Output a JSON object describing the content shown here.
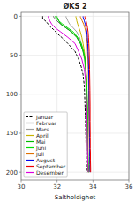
{
  "chart_data": {
    "type": "line",
    "title": "ØKS 2",
    "xlabel": "Saltholdighet",
    "xlim": [
      30,
      36
    ],
    "ylim": [
      210,
      -5
    ],
    "xticks": [
      30,
      32,
      34,
      36
    ],
    "yticks": [
      0,
      50,
      100,
      150,
      200
    ],
    "grid": true,
    "legend": "lower left",
    "series": [
      {
        "name": "Januar",
        "color": "#000000",
        "line_style": "dashed",
        "x": [
          31.2,
          31.2,
          31.2,
          31.3,
          31.4,
          31.5,
          31.6,
          31.8,
          32.0,
          32.3,
          32.6,
          33.0,
          33.2,
          33.35,
          33.45,
          33.52,
          33.55,
          33.58,
          33.6,
          33.62,
          33.63,
          33.64,
          33.65
        ],
        "values": [
          0,
          1,
          3,
          5,
          7,
          10,
          13,
          17,
          22,
          28,
          35,
          45,
          55,
          65,
          75,
          90,
          110,
          130,
          150,
          170,
          180,
          190,
          200
        ]
      },
      {
        "name": "Februar",
        "color": "#606060",
        "line_style": "solid",
        "x": [
          31.8,
          31.8,
          31.9,
          32.0,
          32.2,
          32.5,
          32.8,
          33.1,
          33.3,
          33.45,
          33.55,
          33.6,
          33.63,
          33.65,
          33.67,
          33.68,
          33.69,
          33.7,
          33.71,
          33.72,
          33.73,
          33.74
        ],
        "values": [
          0,
          1,
          3,
          6,
          10,
          15,
          20,
          27,
          35,
          45,
          55,
          68,
          80,
          95,
          115,
          135,
          155,
          170,
          180,
          190,
          195,
          200
        ]
      },
      {
        "name": "Mars",
        "color": "#a0a0a0",
        "line_style": "solid",
        "x": [
          32.5,
          32.5,
          32.55,
          32.6,
          32.7,
          32.9,
          33.1,
          33.25,
          33.35,
          33.45,
          33.52,
          33.58,
          33.62,
          33.65,
          33.67,
          33.68,
          33.69,
          33.7,
          33.71,
          33.72,
          33.73,
          33.74
        ],
        "values": [
          0,
          1,
          3,
          6,
          10,
          15,
          20,
          27,
          35,
          45,
          55,
          68,
          80,
          95,
          115,
          135,
          155,
          170,
          180,
          190,
          195,
          200
        ]
      },
      {
        "name": "April",
        "color": "#c8b400",
        "line_style": "solid",
        "x": [
          33.05,
          33.05,
          33.08,
          33.1,
          33.15,
          33.22,
          33.3,
          33.38,
          33.45,
          33.52,
          33.57,
          33.61,
          33.64,
          33.66,
          33.68,
          33.69,
          33.7,
          33.71,
          33.72,
          33.73,
          33.74,
          33.75
        ],
        "values": [
          0,
          1,
          3,
          6,
          10,
          15,
          20,
          27,
          35,
          45,
          55,
          68,
          80,
          95,
          115,
          135,
          155,
          170,
          180,
          190,
          195,
          200
        ]
      },
      {
        "name": "Mai",
        "color": "#00bb00",
        "line_style": "solid",
        "x": [
          32.0,
          32.0,
          32.05,
          32.1,
          32.2,
          32.5,
          32.8,
          33.1,
          33.3,
          33.45,
          33.55,
          33.6,
          33.63,
          33.66,
          33.68,
          33.69,
          33.7,
          33.71,
          33.72,
          33.73,
          33.74,
          33.75
        ],
        "values": [
          0,
          1,
          3,
          6,
          10,
          15,
          20,
          27,
          35,
          45,
          55,
          68,
          80,
          95,
          115,
          135,
          155,
          170,
          180,
          190,
          195,
          200
        ]
      },
      {
        "name": "Juni",
        "color": "#00dd00",
        "line_style": "solid",
        "x": [
          31.9,
          31.9,
          32.0,
          32.1,
          32.3,
          32.6,
          32.9,
          33.15,
          33.35,
          33.48,
          33.56,
          33.61,
          33.64,
          33.67,
          33.69,
          33.7,
          33.71,
          33.72,
          33.73,
          33.74,
          33.75,
          33.76
        ],
        "values": [
          0,
          1,
          3,
          6,
          10,
          15,
          20,
          27,
          35,
          45,
          55,
          68,
          80,
          95,
          115,
          135,
          155,
          170,
          180,
          190,
          195,
          200
        ]
      },
      {
        "name": "Juli",
        "color": "#e07000",
        "line_style": "solid",
        "x": [
          33.3,
          33.3,
          33.35,
          33.4,
          33.48,
          33.55,
          33.6,
          33.65,
          33.68,
          33.7,
          33.72,
          33.74,
          33.75,
          33.76,
          33.77,
          33.78,
          33.79,
          33.8,
          33.81,
          33.82,
          33.82,
          33.83
        ],
        "values": [
          0,
          1,
          3,
          6,
          10,
          15,
          20,
          27,
          35,
          45,
          55,
          68,
          80,
          95,
          115,
          135,
          155,
          170,
          180,
          190,
          195,
          200
        ]
      },
      {
        "name": "August",
        "color": "#0000ee",
        "line_style": "solid",
        "x": [
          33.45,
          33.45,
          33.48,
          33.52,
          33.57,
          33.62,
          33.66,
          33.69,
          33.71,
          33.73,
          33.75,
          33.76,
          33.77,
          33.78,
          33.79,
          33.8,
          33.81,
          33.82,
          33.82,
          33.83,
          33.83,
          33.84
        ],
        "values": [
          0,
          1,
          3,
          6,
          10,
          15,
          20,
          27,
          35,
          45,
          55,
          68,
          80,
          95,
          115,
          135,
          155,
          170,
          180,
          190,
          195,
          200
        ]
      },
      {
        "name": "September",
        "color": "#ee0000",
        "line_style": "solid",
        "x": [
          33.55,
          33.55,
          33.58,
          33.62,
          33.66,
          33.7,
          33.73,
          33.75,
          33.77,
          33.79,
          33.8,
          33.81,
          33.82,
          33.83,
          33.84,
          33.84,
          33.85,
          33.85,
          33.86,
          33.86,
          33.87,
          33.87
        ],
        "values": [
          0,
          1,
          3,
          6,
          10,
          15,
          20,
          27,
          35,
          45,
          55,
          68,
          80,
          95,
          115,
          135,
          155,
          170,
          175,
          185,
          195,
          200
        ]
      },
      {
        "name": "Desember",
        "color": "#dd00dd",
        "line_style": "solid",
        "x": [
          31.5,
          31.5,
          31.55,
          31.6,
          31.7,
          31.9,
          32.2,
          32.6,
          33.0,
          33.2,
          33.38,
          33.52,
          33.58,
          33.62,
          33.65,
          33.67,
          33.69,
          33.7,
          33.71,
          33.72,
          33.73,
          33.74
        ],
        "values": [
          0,
          1,
          3,
          6,
          10,
          15,
          20,
          27,
          35,
          45,
          55,
          68,
          80,
          95,
          115,
          135,
          155,
          170,
          180,
          190,
          195,
          200
        ]
      }
    ]
  }
}
